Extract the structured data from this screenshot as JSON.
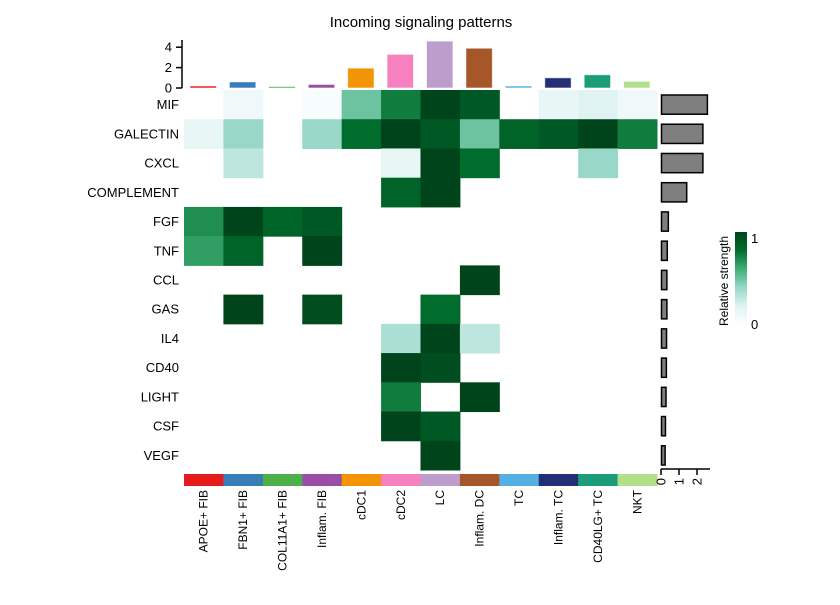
{
  "chart_data": {
    "type": "heatmap",
    "title": "Incoming signaling patterns",
    "columns": [
      "APOE+ FIB",
      "FBN1+ FIB",
      "COL11A1+ FIB",
      "Inflam. FIB",
      "cDC1",
      "cDC2",
      "LC",
      "Inflam. DC",
      "TC",
      "Inflam. TC",
      "CD40LG+ TC",
      "NKT"
    ],
    "column_colors": [
      "#E41A1C",
      "#377EB8",
      "#4DAF4A",
      "#984EA3",
      "#F29403",
      "#F781BF",
      "#BC9DCC",
      "#A65628",
      "#54B0E4",
      "#222F75",
      "#1B9E77",
      "#B2DF8A"
    ],
    "rows": [
      "MIF",
      "GALECTIN",
      "CXCL",
      "COMPLEMENT",
      "FGF",
      "TNF",
      "CCL",
      "GAS",
      "IL4",
      "CD40",
      "LIGHT",
      "CSF",
      "VEGF"
    ],
    "values": [
      [
        0,
        0.1,
        0,
        0.05,
        0.5,
        0.75,
        1,
        0.9,
        0,
        0.15,
        0.2,
        0.1
      ],
      [
        0.15,
        0.4,
        0,
        0.4,
        0.8,
        1,
        0.9,
        0.5,
        0.85,
        0.9,
        1,
        0.75
      ],
      [
        0,
        0.3,
        0,
        0,
        0,
        0.15,
        1,
        0.8,
        0,
        0,
        0.4,
        0
      ],
      [
        0,
        0,
        0,
        0,
        0,
        0.85,
        1,
        0,
        0,
        0,
        0,
        0
      ],
      [
        0.7,
        1,
        0.85,
        0.9,
        0,
        0,
        0,
        0,
        0,
        0,
        0,
        0
      ],
      [
        0.65,
        0.85,
        0,
        1,
        0,
        0,
        0,
        0,
        0,
        0,
        0,
        0
      ],
      [
        0,
        0,
        0,
        0,
        0,
        0,
        0,
        1,
        0,
        0,
        0,
        0
      ],
      [
        0,
        1,
        0,
        0.95,
        0,
        0,
        0.8,
        0,
        0,
        0,
        0,
        0
      ],
      [
        0,
        0,
        0,
        0,
        0,
        0.35,
        1,
        0.3,
        0,
        0,
        0,
        0
      ],
      [
        0,
        0,
        0,
        0,
        0,
        1,
        0.95,
        0,
        0,
        0,
        0,
        0
      ],
      [
        0,
        0,
        0,
        0,
        0,
        0.75,
        0,
        1,
        0,
        0,
        0,
        0
      ],
      [
        0,
        0,
        0,
        0,
        0,
        1,
        0.9,
        0,
        0,
        0,
        0,
        0
      ],
      [
        0,
        0,
        0,
        0,
        0,
        0,
        1,
        0,
        0,
        0,
        0,
        0
      ]
    ],
    "top_bar": {
      "values": [
        0.2,
        0.6,
        0.1,
        0.35,
        1.95,
        3.3,
        4.6,
        3.9,
        0.2,
        1.0,
        1.3,
        0.65
      ],
      "ticks": [
        "0",
        "2",
        "4"
      ],
      "ylim": [
        0,
        5
      ]
    },
    "right_bar": {
      "values": [
        2.55,
        2.3,
        2.3,
        1.4,
        0.38,
        0.32,
        0.3,
        0.3,
        0.28,
        0.27,
        0.25,
        0.22,
        0.2
      ],
      "ticks": [
        "0",
        "1",
        "2"
      ],
      "xlim": [
        0,
        2.7
      ]
    },
    "legend": {
      "title": "Relative strength",
      "min_label": "0",
      "max_label": "1",
      "colors": [
        "#ffffff",
        "#e0f3f3",
        "#99d8c9",
        "#41ae76",
        "#006d2c",
        "#00441b"
      ]
    }
  }
}
